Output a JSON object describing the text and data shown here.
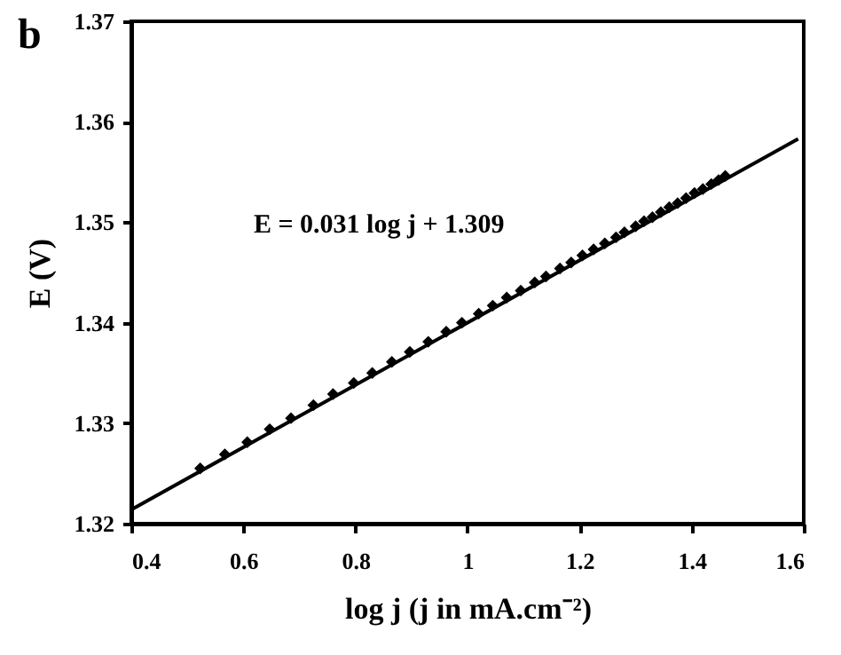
{
  "chart_data": {
    "type": "scatter",
    "xlabel": "log j (j in mA.cm⁻²)",
    "ylabel": "E (V)",
    "annotations": [
      "b",
      "E = 0.031 log j + 1.309"
    ],
    "xlim": [
      0.4,
      1.6
    ],
    "xticks": [
      0.4,
      0.6,
      0.8,
      {
        "value": 1,
        "label": "1"
      },
      1.2,
      1.4,
      1.6
    ],
    "ylim": [
      1.32,
      1.37
    ],
    "yticks": [
      1.32,
      1.33,
      1.34,
      1.35,
      1.36,
      1.37
    ],
    "grid": false,
    "series": [
      {
        "color": "#000000",
        "marker": "diamond",
        "x": [
          0.523,
          0.567,
          0.607,
          0.647,
          0.685,
          0.725,
          0.76,
          0.797,
          0.83,
          0.865,
          0.897,
          0.93,
          0.962,
          0.99,
          1.02,
          1.045,
          1.07,
          1.095,
          1.12,
          1.14,
          1.165,
          1.185,
          1.205,
          1.225,
          1.245,
          1.265,
          1.28,
          1.3,
          1.315,
          1.33,
          1.345,
          1.36,
          1.375,
          1.39,
          1.405,
          1.42,
          1.435,
          1.448,
          1.46
        ],
        "values": [
          1.3255,
          1.3269,
          1.3281,
          1.3294,
          1.3305,
          1.3318,
          1.3329,
          1.334,
          1.335,
          1.3361,
          1.3371,
          1.3381,
          1.3391,
          1.34,
          1.3409,
          1.3417,
          1.3425,
          1.3432,
          1.344,
          1.3446,
          1.3454,
          1.346,
          1.3467,
          1.3473,
          1.3479,
          1.3485,
          1.349,
          1.3496,
          1.3501,
          1.3505,
          1.351,
          1.3515,
          1.3519,
          1.3524,
          1.3529,
          1.3533,
          1.3538,
          1.3542,
          1.3546
        ]
      },
      {
        "type": "line",
        "color": "#000000",
        "marker": "none",
        "line_style": "solid",
        "x": [
          0.4,
          1.59
        ],
        "values": [
          1.3214,
          1.3583
        ]
      }
    ]
  }
}
